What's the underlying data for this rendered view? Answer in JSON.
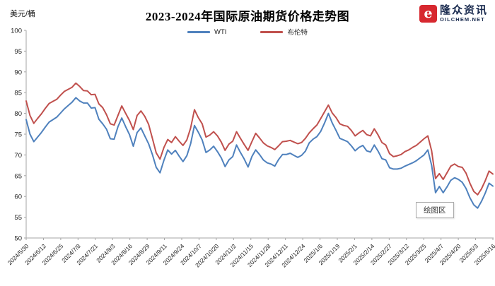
{
  "header": {
    "unit_label": "美元/桶",
    "title": "2023-2024年国际原油期货价格走势图",
    "logo": {
      "letter": "e",
      "brand_cn": "隆众资讯",
      "brand_en": "OILCHEM.NET",
      "mark_color": "#d7282f",
      "text_color": "#1b2c50"
    }
  },
  "plot_area_tooltip": "绘图区",
  "chart_data": {
    "type": "line",
    "title": "2023-2024年国际原油期货价格走势图",
    "xlabel": "",
    "ylabel": "美元/桶",
    "ylim": [
      50,
      100
    ],
    "ytick_step": 5,
    "grid": false,
    "legend_position": "top-center",
    "axis_color": "#a6a6a6",
    "tick_label_color": "#262626",
    "categories": [
      "2024/5/30",
      "2024/6/12",
      "2024/6/25",
      "2024/7/8",
      "2024/7/21",
      "2024/8/3",
      "2024/8/16",
      "2024/8/29",
      "2024/9/11",
      "2024/9/24",
      "2024/10/7",
      "2024/10/20",
      "2024/11/2",
      "2024/11/15",
      "2024/11/28",
      "2024/12/11",
      "2024/12/24",
      "2025/1/6",
      "2025/1/19",
      "2025/2/1",
      "2025/2/14",
      "2025/2/27",
      "2025/3/12",
      "2025/3/25",
      "2025/4/7",
      "2025/4/20",
      "2025/5/3",
      "2025/5/16"
    ],
    "series": [
      {
        "name": "WTI",
        "color": "#4f81bd",
        "values": [
          78.5,
          75.0,
          73.2,
          74.3,
          75.4,
          76.7,
          77.9,
          78.5,
          79.1,
          80.1,
          81.1,
          81.9,
          82.7,
          83.8,
          83.0,
          82.5,
          82.5,
          81.3,
          81.4,
          78.6,
          77.5,
          76.2,
          73.9,
          73.8,
          76.8,
          78.9,
          76.8,
          74.9,
          72.1,
          75.4,
          76.5,
          74.6,
          72.7,
          70.1,
          67.0,
          65.7,
          68.7,
          71.2,
          70.2,
          71.1,
          69.7,
          68.4,
          69.8,
          72.7,
          77.1,
          75.5,
          73.6,
          70.6,
          71.2,
          72.1,
          70.8,
          69.3,
          67.2,
          68.8,
          69.6,
          72.4,
          70.6,
          69.0,
          67.1,
          69.6,
          71.2,
          70.1,
          68.8,
          68.1,
          67.8,
          67.3,
          68.9,
          70.1,
          70.1,
          70.4,
          69.9,
          69.4,
          69.9,
          70.9,
          72.9,
          73.8,
          74.4,
          75.7,
          77.7,
          80.0,
          77.7,
          75.9,
          74.0,
          73.6,
          73.2,
          72.2,
          71.0,
          71.8,
          72.3,
          71.0,
          70.7,
          72.4,
          70.9,
          69.1,
          68.8,
          66.9,
          66.6,
          66.6,
          66.8,
          67.3,
          67.7,
          68.1,
          68.6,
          69.3,
          70.0,
          71.2,
          67.5,
          60.9,
          62.4,
          60.9,
          62.3,
          63.9,
          64.5,
          64.1,
          63.4,
          61.9,
          59.7,
          58.0,
          57.2,
          58.8,
          60.8,
          63.2,
          62.5
        ]
      },
      {
        "name": "布伦特",
        "color": "#c0504d",
        "values": [
          83.0,
          79.5,
          77.6,
          78.8,
          79.9,
          81.2,
          82.4,
          82.9,
          83.4,
          84.4,
          85.3,
          85.8,
          86.3,
          87.3,
          86.5,
          85.5,
          85.4,
          84.5,
          84.6,
          82.3,
          81.4,
          79.7,
          77.5,
          77.2,
          79.5,
          81.8,
          80.0,
          78.3,
          76.1,
          79.5,
          80.6,
          79.3,
          77.4,
          74.0,
          70.5,
          69.0,
          71.8,
          73.7,
          73.0,
          74.4,
          73.3,
          72.3,
          73.6,
          76.5,
          80.9,
          79.0,
          77.5,
          74.3,
          74.8,
          75.6,
          74.6,
          73.1,
          71.1,
          72.6,
          73.3,
          75.6,
          74.0,
          72.5,
          71.1,
          73.2,
          75.2,
          74.1,
          72.9,
          72.2,
          71.8,
          71.3,
          72.2,
          73.2,
          73.3,
          73.5,
          73.1,
          72.7,
          73.0,
          74.0,
          75.3,
          76.3,
          77.2,
          78.8,
          80.4,
          82.0,
          80.1,
          79.0,
          77.5,
          77.1,
          76.9,
          75.9,
          74.6,
          75.3,
          75.9,
          74.9,
          74.6,
          76.3,
          74.8,
          73.0,
          72.4,
          70.3,
          69.6,
          69.8,
          70.1,
          70.8,
          71.2,
          71.8,
          72.3,
          73.1,
          73.9,
          74.6,
          71.0,
          64.3,
          65.5,
          64.1,
          65.7,
          67.3,
          67.8,
          67.2,
          67.0,
          65.6,
          63.2,
          61.2,
          60.4,
          61.8,
          63.8,
          66.1,
          65.4
        ]
      }
    ]
  }
}
